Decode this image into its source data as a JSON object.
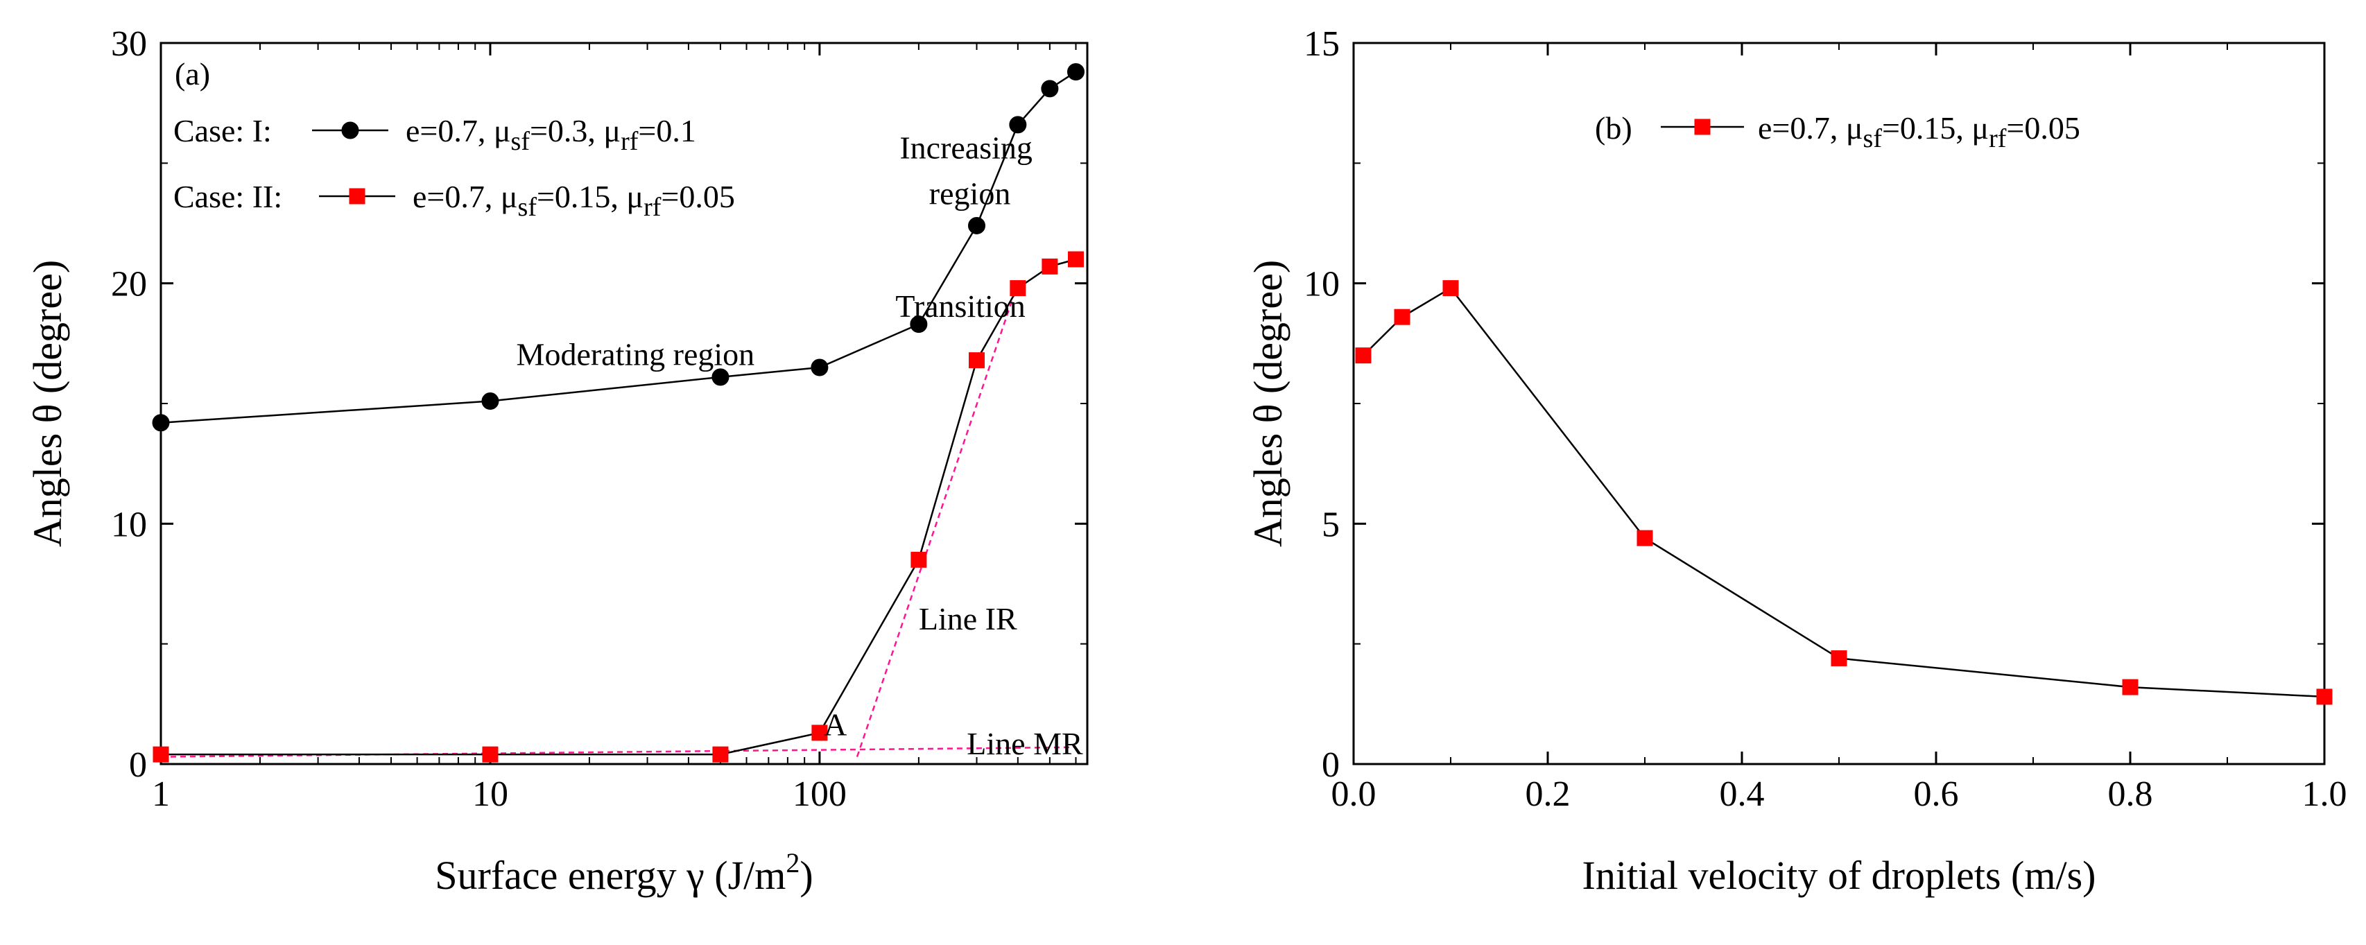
{
  "chart_data": [
    {
      "panel_label": "(a)",
      "type": "line",
      "xscale": "log",
      "xlabel": "Surface energy γ (J/m²)",
      "xlabel_text": "Surface energy γ (J/m",
      "xlabel_sup": "2",
      "xlabel_close": ")",
      "ylabel": "Angles θ (degree)",
      "xlim": [
        1,
        650
      ],
      "ylim": [
        0,
        30
      ],
      "xticks": [
        1,
        10,
        100
      ],
      "xtick_labels": [
        "1",
        "10",
        "100"
      ],
      "yticks": [
        0,
        10,
        20,
        30
      ],
      "ytick_labels": [
        "0",
        "10",
        "20",
        "30"
      ],
      "series": [
        {
          "name": "Case: I: e=0.7, μsf=0.3, μrf=0.1",
          "case_label": "Case: I:",
          "legend_parts": [
            "e=0.7, μ",
            "sf",
            "=0.3, μ",
            "rf",
            "=0.1"
          ],
          "marker": "circle",
          "color": "#000000",
          "x": [
            1,
            10,
            50,
            100,
            200,
            300,
            400,
            500,
            600
          ],
          "y": [
            14.2,
            15.1,
            16.1,
            16.5,
            18.3,
            22.4,
            26.6,
            28.1,
            28.8
          ]
        },
        {
          "name": "Case: II: e=0.7, μsf=0.15, μrf=0.05",
          "case_label": "Case: II:",
          "legend_parts": [
            "e=0.7, μ",
            "sf",
            "=0.15, μ",
            "rf",
            "=0.05"
          ],
          "marker": "square",
          "color": "#ff0000",
          "x": [
            1,
            10,
            50,
            100,
            200,
            300,
            400,
            500,
            600
          ],
          "y": [
            0.4,
            0.4,
            0.4,
            1.3,
            8.5,
            16.8,
            19.8,
            20.7,
            21.0
          ]
        }
      ],
      "reference_lines": [
        {
          "name": "Line MR",
          "color": "#ff1493",
          "x": [
            1,
            600
          ],
          "y": [
            0.3,
            0.7
          ]
        },
        {
          "name": "Line IR",
          "color": "#ff1493",
          "x": [
            130,
            400
          ],
          "y": [
            0.3,
            20.0
          ]
        }
      ],
      "annotations": [
        {
          "text": "Moderating region",
          "x": 12,
          "y": 16.6
        },
        {
          "text": "Transition",
          "x": 170,
          "y": 18.6
        },
        {
          "text": "Increasing",
          "x": 175,
          "y": 25.2
        },
        {
          "text": "region",
          "x": 215,
          "y": 23.3
        },
        {
          "text": "A",
          "x": 103,
          "y": 1.2
        },
        {
          "text": "Line IR",
          "x": 200,
          "y": 5.6
        },
        {
          "text": "Line MR",
          "x": 280,
          "y": 0.4
        }
      ]
    },
    {
      "panel_label": "(b)",
      "type": "line",
      "xscale": "linear",
      "xlabel": "Initial velocity of droplets (m/s)",
      "ylabel": "Angles θ (degree)",
      "xlim": [
        0,
        1.0
      ],
      "ylim": [
        0,
        15
      ],
      "xticks": [
        0,
        0.2,
        0.4,
        0.6,
        0.8,
        1.0
      ],
      "xtick_labels": [
        "0.0",
        "0.2",
        "0.4",
        "0.6",
        "0.8",
        "1.0"
      ],
      "yticks": [
        0,
        5,
        10,
        15
      ],
      "ytick_labels": [
        "0",
        "5",
        "10",
        "15"
      ],
      "series": [
        {
          "name": "e=0.7, μsf=0.15, μrf=0.05",
          "legend_parts": [
            "e=0.7, μ",
            "sf",
            "=0.15, μ",
            "rf",
            "=0.05"
          ],
          "marker": "square",
          "color": "#ff0000",
          "x": [
            0.01,
            0.05,
            0.1,
            0.3,
            0.5,
            0.8,
            1.0
          ],
          "y": [
            8.5,
            9.3,
            9.9,
            4.7,
            2.2,
            1.6,
            1.4
          ]
        }
      ]
    }
  ]
}
